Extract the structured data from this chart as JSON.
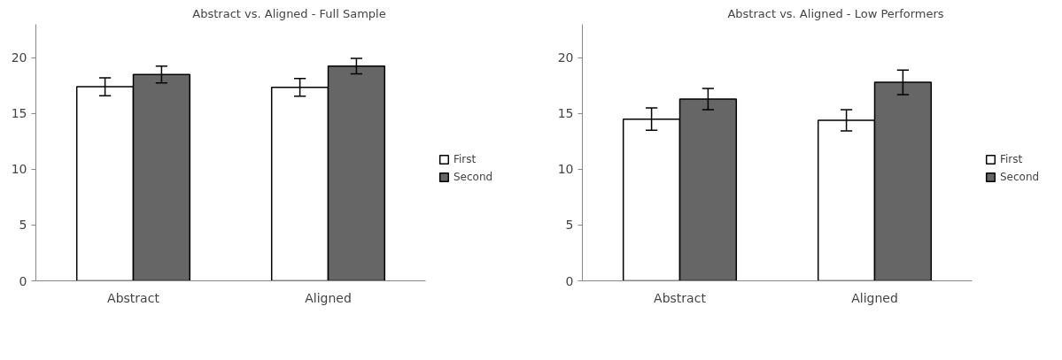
{
  "chart_data": [
    {
      "type": "bar",
      "title": "Abstract vs. Aligned - Full Sample",
      "categories": [
        "Abstract",
        "Aligned"
      ],
      "ylim": [
        0,
        23
      ],
      "yticks": [
        0,
        5,
        10,
        15,
        20
      ],
      "grid": false,
      "legend": "right",
      "series": [
        {
          "name": "First",
          "color": "#ffffff",
          "values": [
            17.4,
            17.35
          ],
          "errors": [
            0.8,
            0.8
          ]
        },
        {
          "name": "Second",
          "color": "#666666",
          "values": [
            18.5,
            19.25
          ],
          "errors": [
            0.75,
            0.7
          ]
        }
      ]
    },
    {
      "type": "bar",
      "title": "Abstract vs. Aligned - Low Performers",
      "categories": [
        "Abstract",
        "Aligned"
      ],
      "ylim": [
        0,
        23
      ],
      "yticks": [
        0,
        5,
        10,
        15,
        20
      ],
      "grid": false,
      "legend": "right",
      "series": [
        {
          "name": "First",
          "color": "#ffffff",
          "values": [
            14.5,
            14.4
          ],
          "errors": [
            1.0,
            0.95
          ]
        },
        {
          "name": "Second",
          "color": "#666666",
          "values": [
            16.3,
            17.8
          ],
          "errors": [
            0.95,
            1.1
          ]
        }
      ]
    }
  ]
}
